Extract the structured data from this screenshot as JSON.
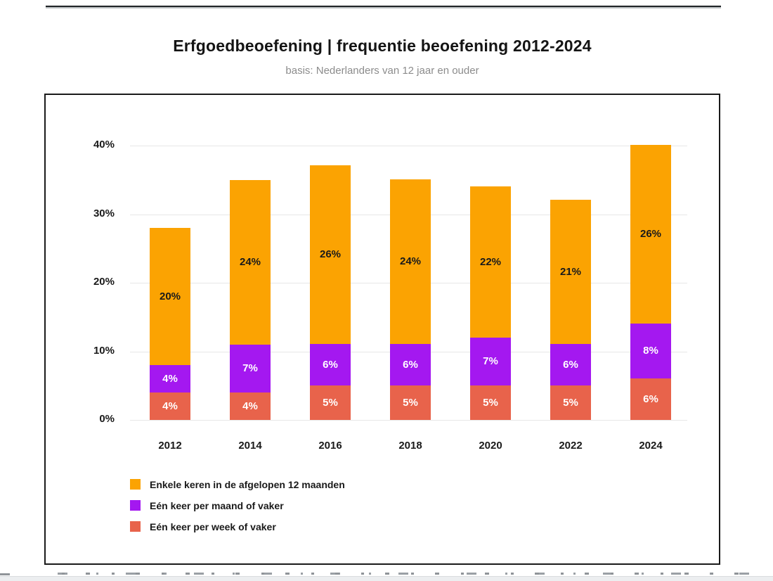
{
  "page": {
    "title": "Erfgoedbeoefening | frequentie beoefening 2012-2024",
    "subtitle": "basis: Nederlanders van 12 jaar en ouder"
  },
  "chart_data": {
    "type": "bar",
    "stacked": true,
    "title": "Erfgoedbeoefening | frequentie beoefening 2012-2024",
    "subtitle": "basis: Nederlanders van 12 jaar en ouder",
    "categories": [
      "2012",
      "2014",
      "2016",
      "2018",
      "2020",
      "2022",
      "2024"
    ],
    "series": [
      {
        "name": "Enkele keren in de afgelopen 12 maanden",
        "color": "#FBA302",
        "label_color": "#1a1a1a",
        "values": [
          20,
          24,
          26,
          24,
          22,
          21,
          26
        ]
      },
      {
        "name": "Eén keer per maand of vaker",
        "color": "#A418F0",
        "label_color": "#ffffff",
        "values": [
          4,
          7,
          6,
          6,
          7,
          6,
          8
        ]
      },
      {
        "name": "Eén keer per week of vaker",
        "color": "#E8634B",
        "label_color": "#ffffff",
        "values": [
          4,
          4,
          5,
          5,
          5,
          5,
          6
        ]
      }
    ],
    "value_suffix": "%",
    "y_ticks": [
      "0%",
      "10%",
      "20%",
      "30%",
      "40%"
    ],
    "y_tick_values": [
      0,
      10,
      20,
      30,
      40
    ],
    "ylim": [
      0,
      40
    ],
    "grid": true,
    "legend_position": "bottom-left"
  }
}
